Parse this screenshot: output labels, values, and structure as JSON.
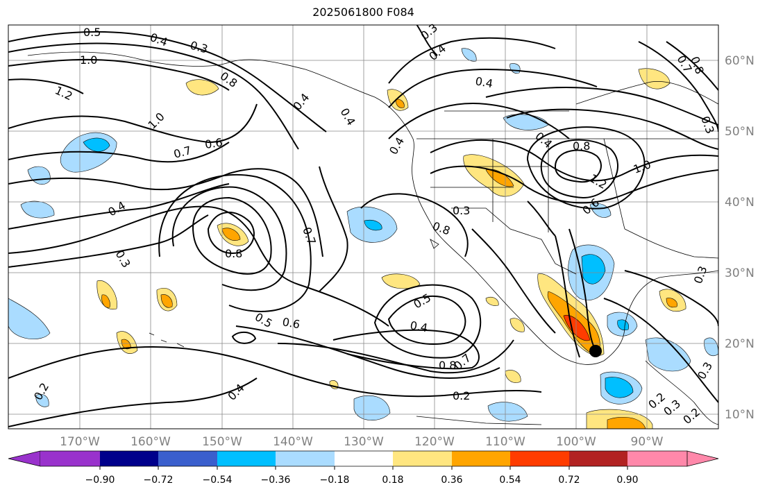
{
  "title": "2025061800 F084",
  "lon_labels": [
    "170°W",
    "160°W",
    "150°W",
    "140°W",
    "130°W",
    "120°W",
    "110°W",
    "100°W",
    "90°W"
  ],
  "lat_labels": [
    "60°N",
    "50°N",
    "40°N",
    "30°N",
    "20°N",
    "10°N"
  ],
  "colorbar": {
    "tick_labels": [
      "−0.90",
      "−0.72",
      "−0.54",
      "−0.36",
      "−0.18",
      "0.18",
      "0.36",
      "0.54",
      "0.72",
      "0.90"
    ],
    "colors": [
      "#9932cc",
      "#00008b",
      "#3a5fcd",
      "#00bfff",
      "#aadcff",
      "#ffffff",
      "#ffe680",
      "#ffa500",
      "#ff3c00",
      "#b22222",
      "#ff88aa"
    ]
  },
  "contour_labels": [
    "0.5",
    "0.4",
    "0.3",
    "1.0",
    "1.2",
    "0.8",
    "1.0",
    "0.7",
    "0.6",
    "0.4",
    "0.3",
    "0.8",
    "0.7",
    "0.3",
    "0.4",
    "0.5",
    "0.6",
    "0.5",
    "0.4",
    "0.8",
    "0.7",
    "0.2",
    "0.4",
    "0.2",
    "0.3",
    "0.4",
    "0.4",
    "0.4",
    "0.4",
    "0.8",
    "0.8",
    "1.2",
    "1.0",
    "0.7",
    "0.8",
    "0.6",
    "0.3",
    "0.3",
    "0.2",
    "0.3",
    "0.2",
    "0.4",
    "0.3"
  ],
  "marker": {
    "lon": "97°W",
    "lat": "19°N"
  }
}
